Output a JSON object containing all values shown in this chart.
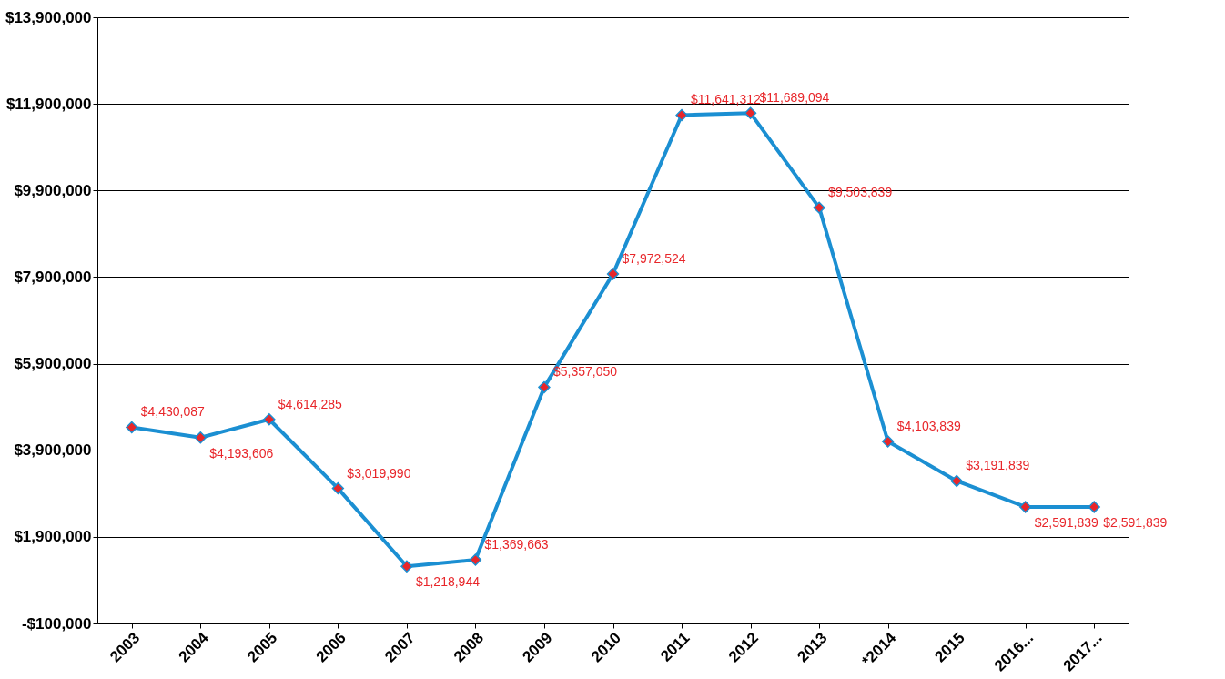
{
  "chart_data": {
    "type": "line",
    "categories": [
      "2003",
      "2004",
      "2005",
      "2006",
      "2007",
      "2008",
      "2009",
      "2010",
      "2011",
      "2012",
      "2013",
      "*2014",
      "2015",
      "2016...",
      "2017..."
    ],
    "series": [
      {
        "color": "#1b8fd2",
        "values": [
          4430087,
          4193606,
          4614285,
          3019990,
          1218944,
          1369663,
          5357050,
          7972524,
          11641312,
          11689094,
          9503839,
          4103839,
          3191839,
          2591839,
          2591839
        ]
      }
    ],
    "value_labels": [
      "$4,430,087",
      "$4,193,606",
      "$4,614,285",
      "$3,019,990",
      "$1,218,944",
      "$1,369,663",
      "$5,357,050",
      "$7,972,524",
      "$11,641,312",
      "$11,689,094",
      "$9,503,839",
      "$4,103,839",
      "$3,191,839",
      "$2,591,839",
      "$2,591,839"
    ],
    "marker": "diamond",
    "grid": "y",
    "ylim": [
      -100000,
      13900000
    ],
    "yticks": [
      {
        "value": -100000,
        "label": "-$100,000"
      },
      {
        "value": 1900000,
        "label": "$1,900,000"
      },
      {
        "value": 3900000,
        "label": "$3,900,000"
      },
      {
        "value": 5900000,
        "label": "$5,900,000"
      },
      {
        "value": 7900000,
        "label": "$7,900,000"
      },
      {
        "value": 9900000,
        "label": "$9,900,000"
      },
      {
        "value": 11900000,
        "label": "$11,900,000"
      },
      {
        "value": 13900000,
        "label": "$13,900,000"
      }
    ]
  }
}
